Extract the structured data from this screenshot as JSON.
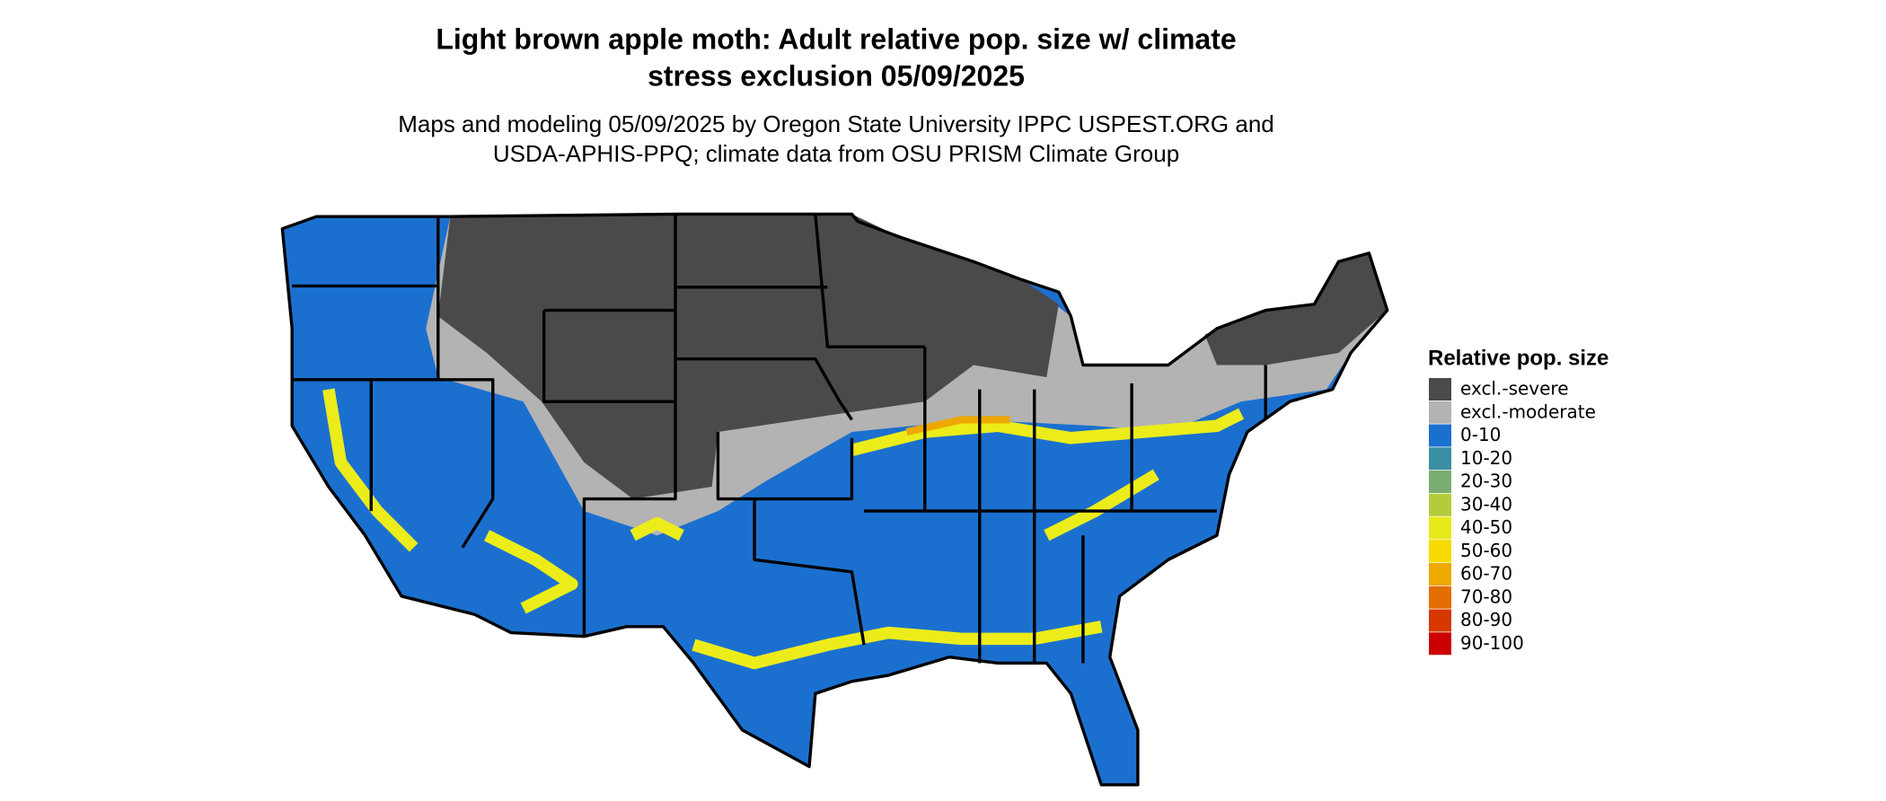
{
  "title": [
    "Light brown apple moth: Adult relative pop. size w/ climate",
    "stress exclusion 05/09/2025"
  ],
  "subtitle": [
    "Maps and modeling 05/09/2025 by Oregon State University IPPC USPEST.ORG and",
    "USDA-APHIS-PPQ; climate data from OSU PRISM Climate Group"
  ],
  "legend": {
    "title": "Relative pop. size",
    "items": [
      {
        "label": "excl.-severe",
        "color": "#4a4a4a"
      },
      {
        "label": "excl.-moderate",
        "color": "#b3b3b3"
      },
      {
        "label": "0-10",
        "color": "#1b70cf"
      },
      {
        "label": "10-20",
        "color": "#3b8fa3"
      },
      {
        "label": "20-30",
        "color": "#7aad72"
      },
      {
        "label": "30-40",
        "color": "#b2cc3a"
      },
      {
        "label": "40-50",
        "color": "#e6ea1a"
      },
      {
        "label": "50-60",
        "color": "#f6da00"
      },
      {
        "label": "60-70",
        "color": "#eea800"
      },
      {
        "label": "70-80",
        "color": "#e46e00"
      },
      {
        "label": "80-90",
        "color": "#d63800"
      },
      {
        "label": "90-100",
        "color": "#cc0000"
      }
    ]
  }
}
